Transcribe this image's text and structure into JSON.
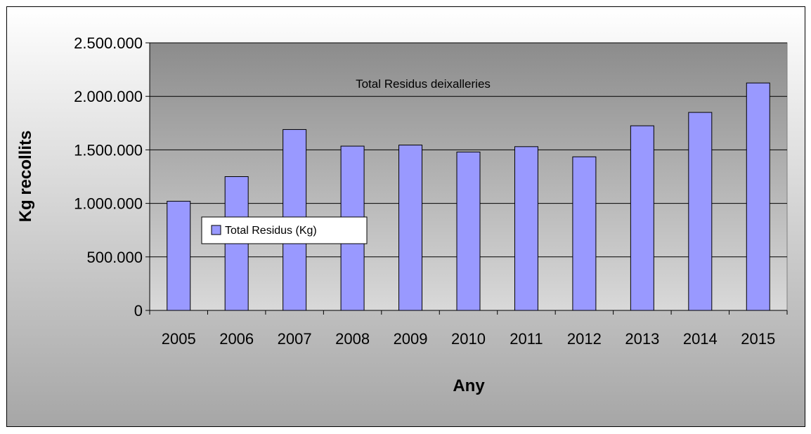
{
  "chart_data": {
    "type": "bar",
    "title": "Total Residus deixalleries",
    "xlabel": "Any",
    "ylabel": "Kg recollits",
    "categories": [
      "2005",
      "2006",
      "2007",
      "2008",
      "2009",
      "2010",
      "2011",
      "2012",
      "2013",
      "2014",
      "2015"
    ],
    "series": [
      {
        "name": "Total Residus (Kg)",
        "values": [
          1020000,
          1250000,
          1690000,
          1535000,
          1545000,
          1480000,
          1530000,
          1435000,
          1725000,
          1850000,
          2125000
        ]
      }
    ],
    "ylim": [
      0,
      2500000
    ],
    "yticks": [
      0,
      500000,
      1000000,
      1500000,
      2000000,
      2500000
    ],
    "ytick_labels": [
      "0",
      "500.000",
      "1.000.000",
      "1.500.000",
      "2.000.000",
      "2.500.000"
    ],
    "grid": true,
    "legend_position": "left-middle",
    "colors": {
      "bar_fill": "#9999ff",
      "bar_stroke": "#000000",
      "plot_bg_top": "#8c8c8c",
      "plot_bg_bottom": "#d9d9d9",
      "outer_bg_top": "#ffffff",
      "outer_bg_bottom": "#a6a6a6"
    }
  }
}
